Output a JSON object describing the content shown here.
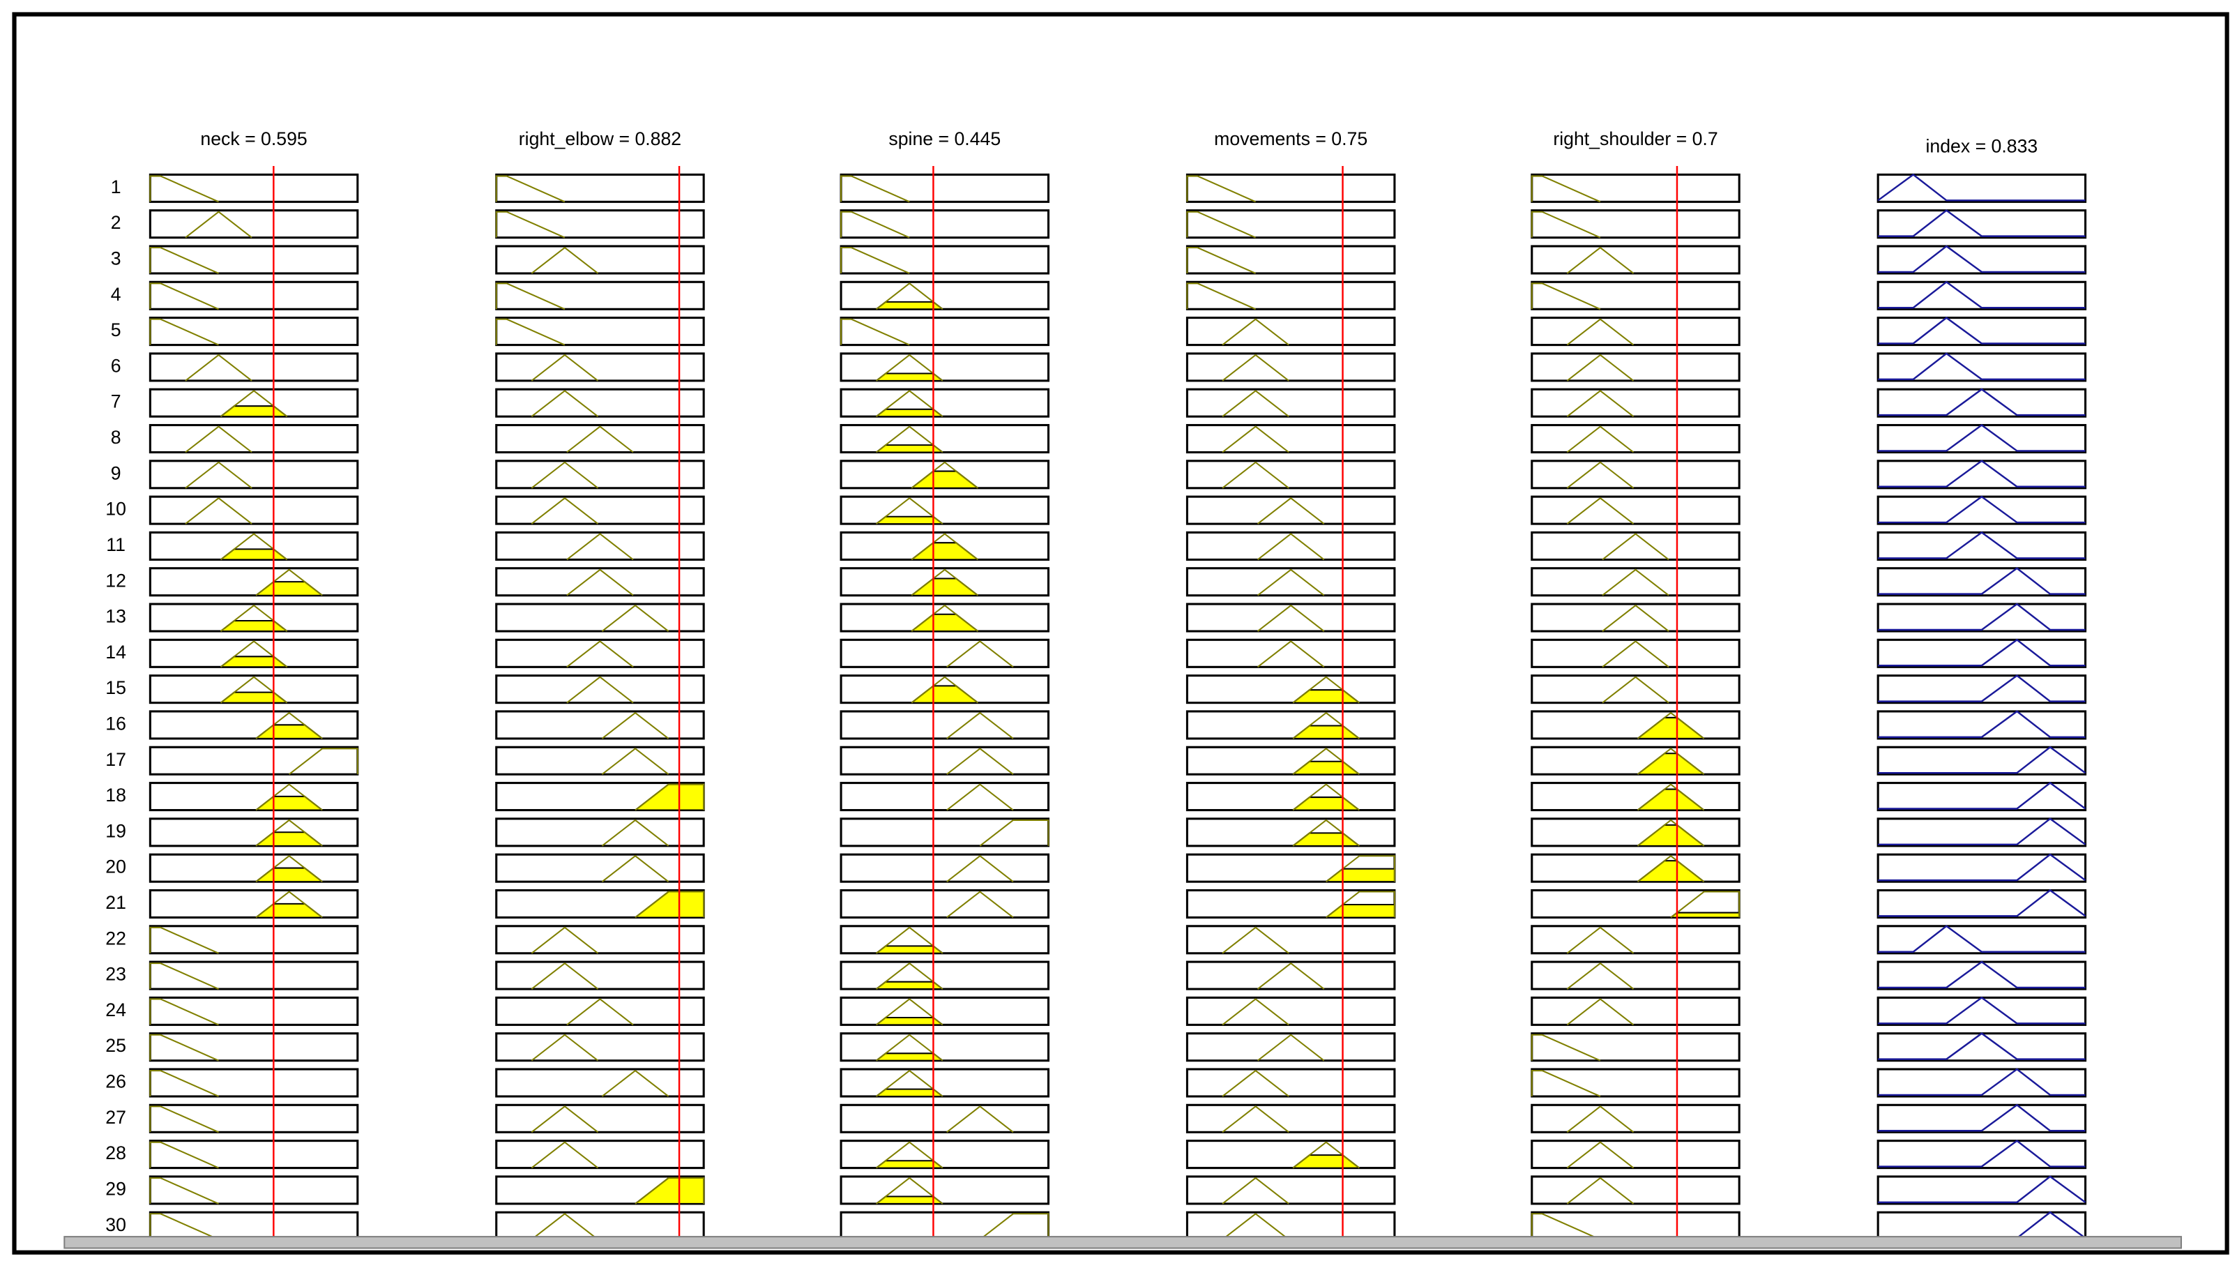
{
  "columns": [
    {
      "title": "neck = 0.595",
      "value": 0.595
    },
    {
      "title": "right_elbow = 0.882",
      "value": 0.882
    },
    {
      "title": "spine = 0.445",
      "value": 0.445
    },
    {
      "title": "movements = 0.75",
      "value": 0.75
    },
    {
      "title": "right_shoulder = 0.7",
      "value": 0.7
    },
    {
      "title": "index = 0.833"
    }
  ],
  "rows": [
    1,
    2,
    3,
    4,
    5,
    6,
    7,
    8,
    9,
    10,
    11,
    12,
    13,
    14,
    15,
    16,
    17,
    18,
    19,
    20,
    21,
    22,
    23,
    24,
    25,
    26,
    27,
    28,
    29,
    30
  ]
}
